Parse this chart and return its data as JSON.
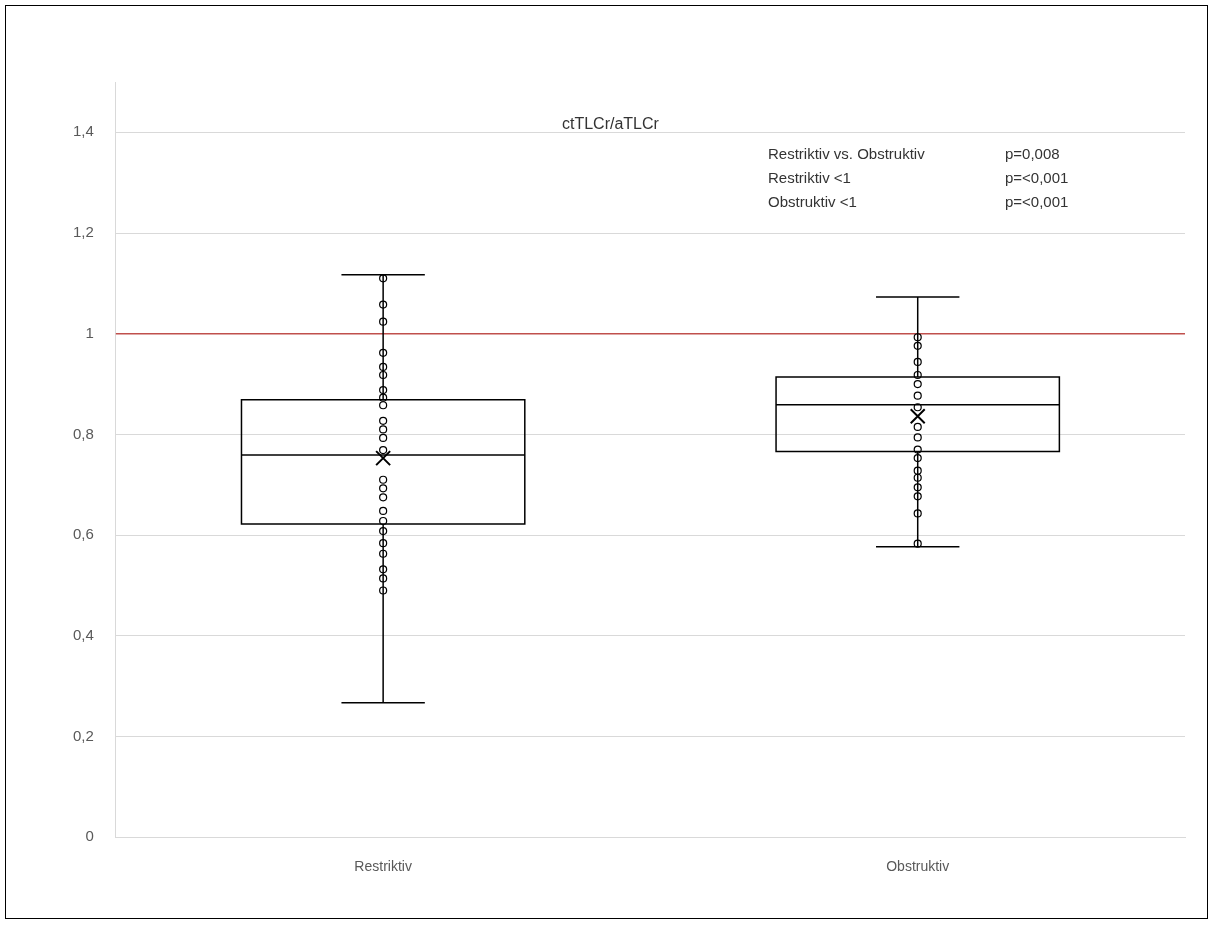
{
  "chart_data": {
    "type": "box",
    "title": "ctTLCr/aTLCr",
    "categories": [
      "Restriktiv",
      "Obstruktiv"
    ],
    "ylim": [
      0,
      1.5
    ],
    "yticks": [
      {
        "value": 0,
        "label": "0"
      },
      {
        "value": 0.2,
        "label": "0,2"
      },
      {
        "value": 0.4,
        "label": "0,4"
      },
      {
        "value": 0.6,
        "label": "0,6"
      },
      {
        "value": 0.8,
        "label": "0,8"
      },
      {
        "value": 1,
        "label": "1"
      },
      {
        "value": 1.2,
        "label": "1,2"
      },
      {
        "value": 1.4,
        "label": "1,4"
      }
    ],
    "grid": "y",
    "legend": false,
    "ref_lines": [
      {
        "axis": "y",
        "value": 1,
        "color": "#c0504d"
      }
    ],
    "annotations": [
      "Restriktiv vs. Obstruktiv",
      "p=0,008",
      "Restriktiv <1",
      "p=<0,001",
      "Obstruktiv <1",
      "p=<0,001"
    ],
    "series": [
      {
        "color": "#000000",
        "boxes": [
          {
            "low": 0.267,
            "q1": 0.622,
            "median": 0.759,
            "q3": 0.869,
            "high": 1.117,
            "mean": 0.753
          },
          {
            "low": 0.577,
            "q1": 0.766,
            "median": 0.859,
            "q3": 0.914,
            "high": 1.073,
            "mean": 0.836
          }
        ]
      },
      {
        "type": "scatter",
        "color": "#000000",
        "marker": "circle",
        "x": [
          "Restriktiv",
          "Restriktiv",
          "Restriktiv",
          "Restriktiv",
          "Restriktiv",
          "Restriktiv",
          "Restriktiv",
          "Restriktiv",
          "Restriktiv",
          "Restriktiv",
          "Restriktiv",
          "Restriktiv",
          "Restriktiv",
          "Restriktiv",
          "Restriktiv",
          "Restriktiv",
          "Restriktiv",
          "Restriktiv",
          "Restriktiv",
          "Restriktiv",
          "Restriktiv",
          "Restriktiv",
          "Restriktiv",
          "Restriktiv",
          "Obstruktiv",
          "Obstruktiv",
          "Obstruktiv",
          "Obstruktiv",
          "Obstruktiv",
          "Obstruktiv",
          "Obstruktiv",
          "Obstruktiv",
          "Obstruktiv",
          "Obstruktiv",
          "Obstruktiv",
          "Obstruktiv",
          "Obstruktiv",
          "Obstruktiv",
          "Obstruktiv",
          "Obstruktiv",
          "Obstruktiv"
        ],
        "values": [
          1.11,
          1.058,
          1.024,
          0.962,
          0.934,
          0.918,
          0.888,
          0.873,
          0.858,
          0.827,
          0.81,
          0.793,
          0.769,
          0.71,
          0.693,
          0.675,
          0.648,
          0.628,
          0.608,
          0.584,
          0.563,
          0.532,
          0.514,
          0.49,
          0.993,
          0.976,
          0.944,
          0.918,
          0.9,
          0.877,
          0.854,
          0.815,
          0.794,
          0.77,
          0.753,
          0.728,
          0.714,
          0.695,
          0.677,
          0.643,
          0.583
        ]
      }
    ]
  }
}
